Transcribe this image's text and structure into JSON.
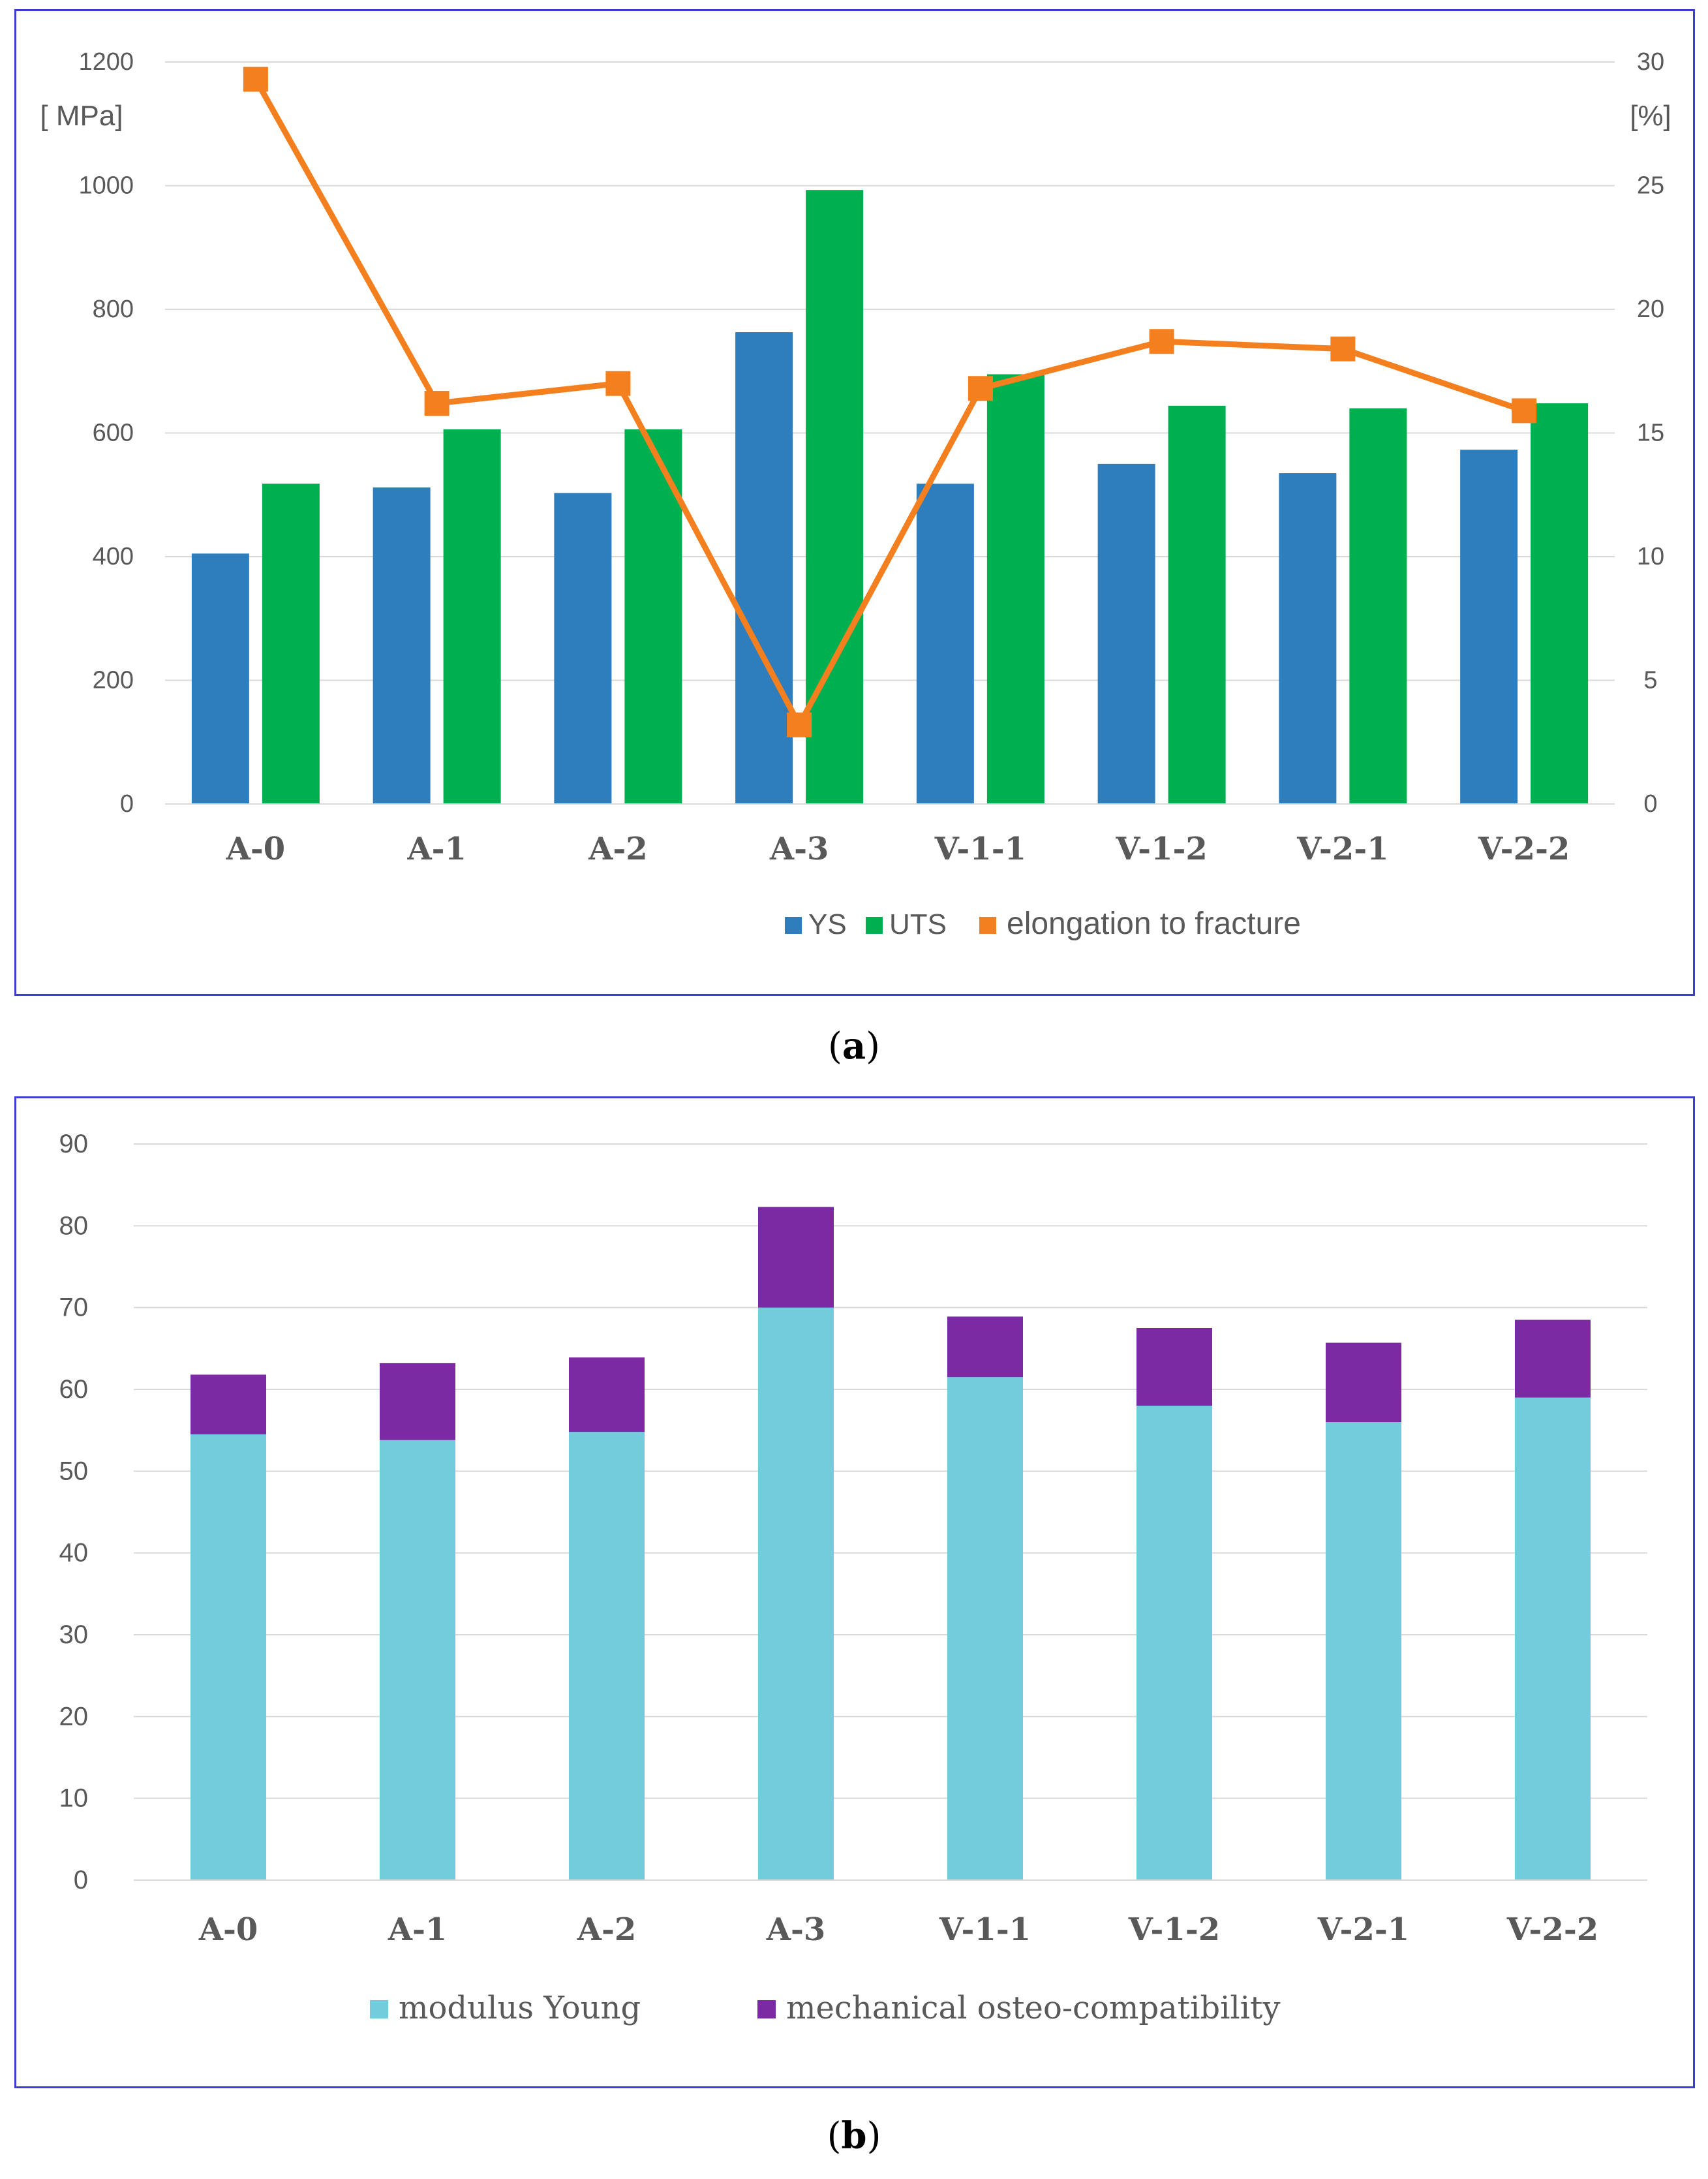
{
  "chart_data": [
    {
      "id": "a",
      "type": "bar+line",
      "categories": [
        "A-0",
        "A-1",
        "A-2",
        "A-3",
        "V-1-1",
        "V-1-2",
        "V-2-1",
        "V-2-2"
      ],
      "series": [
        {
          "name": "YS",
          "type": "bar",
          "axis": "left",
          "color": "#2e7dbd",
          "values": [
            405,
            512,
            503,
            763,
            518,
            550,
            535,
            573
          ]
        },
        {
          "name": "UTS",
          "type": "bar",
          "axis": "left",
          "color": "#00b050",
          "values": [
            518,
            606,
            606,
            993,
            695,
            644,
            640,
            648
          ]
        },
        {
          "name": "elongation to fracture",
          "type": "line",
          "axis": "right",
          "color": "#f47f1f",
          "values": [
            29.3,
            16.2,
            17.0,
            3.2,
            16.8,
            18.7,
            18.4,
            15.9
          ]
        }
      ],
      "y_left": {
        "label": "[ MPa]",
        "ylim": [
          0,
          1200
        ],
        "ticks": [
          "0",
          "200",
          "400",
          "600",
          "800",
          "1000",
          "1200"
        ]
      },
      "y_right": {
        "label": "[%]",
        "ylim": [
          0,
          30
        ],
        "ticks": [
          "0",
          "5",
          "10",
          "15",
          "20",
          "25",
          "30"
        ]
      },
      "grid": true,
      "legend_position": "bottom"
    },
    {
      "id": "b",
      "type": "stacked-bar",
      "categories": [
        "A-0",
        "A-1",
        "A-2",
        "A-3",
        "V-1-1",
        "V-1-2",
        "V-2-1",
        "V-2-2"
      ],
      "series": [
        {
          "name": "modulus Young",
          "color": "#72ccdc",
          "values": [
            54.5,
            53.8,
            54.8,
            70.0,
            61.5,
            58.0,
            56.0,
            59.0
          ]
        },
        {
          "name": "mechanical osteo-compatibility",
          "color": "#7b2aa4",
          "values": [
            7.3,
            9.4,
            9.1,
            12.3,
            7.4,
            9.5,
            9.7,
            9.5
          ]
        }
      ],
      "y": {
        "ylim": [
          0,
          90
        ],
        "ticks": [
          "0",
          "10",
          "20",
          "30",
          "40",
          "50",
          "60",
          "70",
          "80",
          "90"
        ]
      },
      "grid": true,
      "legend_position": "bottom"
    }
  ],
  "captions": {
    "a": "a",
    "b": "b"
  }
}
